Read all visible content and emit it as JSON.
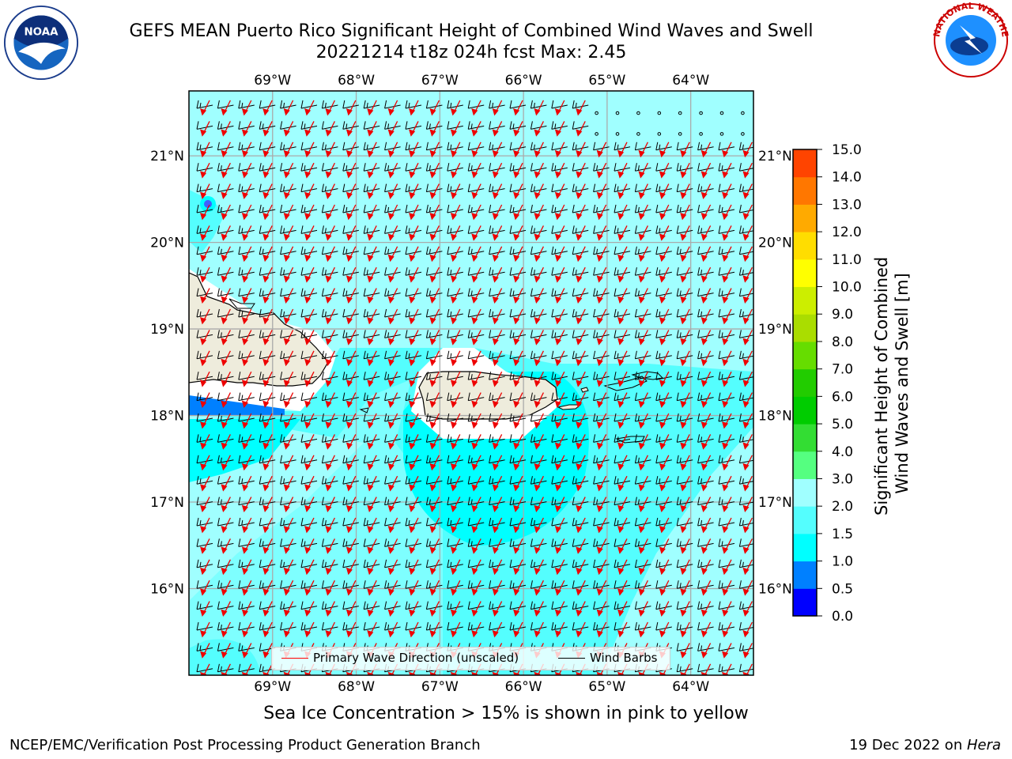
{
  "header": {
    "title_line1": "GEFS MEAN Puerto Rico Significant Height of Combined Wind Waves and Swell",
    "title_line2": "20221214 t18z 024h fcst   Max: 2.45"
  },
  "logos": {
    "left": {
      "icon": "noaa-logo-icon",
      "text": "NOAA"
    },
    "right": {
      "icon": "nws-logo-icon",
      "text": "NATIONAL WEATHER SERVICE"
    }
  },
  "map": {
    "lon_labels": [
      "69°W",
      "68°W",
      "67°W",
      "66°W",
      "65°W",
      "64°W"
    ],
    "lat_labels": [
      "21°N",
      "20°N",
      "19°N",
      "18°N",
      "17°N",
      "16°N"
    ],
    "lon_values": [
      -69,
      -68,
      -67,
      -66,
      -65,
      -64
    ],
    "lat_values": [
      21,
      20,
      19,
      18,
      17,
      16
    ],
    "extent": {
      "lon_min": -70.0,
      "lon_max": -63.25,
      "lat_min": 15.0,
      "lat_max": 21.75
    },
    "land_color": "#eeecdc",
    "ocean_color_default": "#54fefe",
    "legend": {
      "wave_label": "Primary Wave Direction (unscaled)",
      "barb_label": "Wind Barbs",
      "wave_color": "#ff0000",
      "barb_color": "#000000"
    }
  },
  "colorbar": {
    "title_line1": "Significant Height of Combined",
    "title_line2": "Wind Waves and Swell [m]",
    "ticks": [
      "15.0",
      "14.0",
      "13.0",
      "12.0",
      "11.0",
      "10.0",
      "9.0",
      "8.0",
      "7.0",
      "6.0",
      "5.0",
      "4.0",
      "3.0",
      "2.0",
      "1.5",
      "1.0",
      "0.5",
      "0.0"
    ],
    "colors_bottom_to_top": [
      "#0000ff",
      "#0080ff",
      "#00ffff",
      "#54fefe",
      "#a0ffff",
      "#55ff80",
      "#33dd33",
      "#00cc00",
      "#22cc00",
      "#66dd00",
      "#aadd00",
      "#ccee00",
      "#ffff00",
      "#ffdd00",
      "#ffaa00",
      "#ff7700",
      "#ff4400",
      "#ff2200",
      "#ff0000"
    ]
  },
  "note": "Sea Ice Concentration > 15% is shown in pink to yellow",
  "footer": {
    "left": "NCEP/EMC/Verification Post Processing Product Generation Branch",
    "right_date": "19 Dec 2022 on ",
    "right_host": "Hera"
  }
}
